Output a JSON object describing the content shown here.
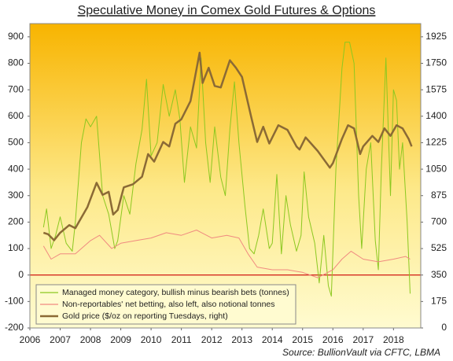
{
  "chart_data": {
    "type": "line",
    "title": "Speculative Money in Comex Gold Futures & Options",
    "source": "Source: BullionVault via CFTC, LBMA",
    "xlim": [
      2006,
      2018.9
    ],
    "xticks": [
      2006,
      2007,
      2008,
      2009,
      2010,
      2011,
      2012,
      2013,
      2014,
      2015,
      2016,
      2017,
      2018
    ],
    "ylim": [
      -200,
      950
    ],
    "yticks": [
      -200,
      -100,
      0,
      100,
      200,
      300,
      400,
      500,
      600,
      700,
      800,
      900
    ],
    "y2lim": [
      0,
      2012.5
    ],
    "y2ticks": [
      0,
      175,
      350,
      525,
      700,
      875,
      1050,
      1225,
      1400,
      1575,
      1750,
      1925
    ],
    "reference_line": 0,
    "reference_color": "#cc0000",
    "grid": false,
    "legend": "bottom-left",
    "series": [
      {
        "name": "Managed money category, bullish minus bearish bets (tonnes)",
        "color": "#8cc820",
        "x": [
          2006.45,
          2006.55,
          2006.7,
          2006.85,
          2007.0,
          2007.2,
          2007.4,
          2007.5,
          2007.7,
          2007.85,
          2008.0,
          2008.2,
          2008.4,
          2008.6,
          2008.8,
          2008.9,
          2009.1,
          2009.3,
          2009.5,
          2009.7,
          2009.85,
          2010.0,
          2010.2,
          2010.4,
          2010.6,
          2010.8,
          2010.95,
          2011.1,
          2011.3,
          2011.5,
          2011.65,
          2011.8,
          2011.95,
          2012.1,
          2012.3,
          2012.45,
          2012.6,
          2012.75,
          2012.9,
          2013.1,
          2013.25,
          2013.4,
          2013.55,
          2013.7,
          2013.9,
          2014.0,
          2014.15,
          2014.3,
          2014.45,
          2014.6,
          2014.8,
          2014.95,
          2015.05,
          2015.2,
          2015.4,
          2015.55,
          2015.7,
          2015.85,
          2015.95,
          2016.1,
          2016.3,
          2016.4,
          2016.55,
          2016.7,
          2016.85,
          2016.95,
          2017.1,
          2017.25,
          2017.4,
          2017.5,
          2017.6,
          2017.75,
          2017.9,
          2018.0,
          2018.1,
          2018.2,
          2018.3,
          2018.45,
          2018.55
        ],
        "values": [
          180,
          250,
          100,
          150,
          220,
          120,
          90,
          200,
          500,
          590,
          560,
          600,
          300,
          230,
          100,
          130,
          300,
          230,
          420,
          550,
          740,
          450,
          500,
          720,
          600,
          700,
          590,
          350,
          560,
          480,
          820,
          500,
          350,
          560,
          370,
          300,
          550,
          730,
          500,
          260,
          100,
          80,
          150,
          250,
          100,
          120,
          380,
          80,
          300,
          190,
          90,
          150,
          390,
          220,
          120,
          -30,
          150,
          -40,
          -80,
          400,
          780,
          880,
          880,
          800,
          300,
          100,
          400,
          500,
          130,
          20,
          400,
          820,
          300,
          700,
          660,
          400,
          500,
          200,
          -70
        ]
      },
      {
        "name": "Non-reportables' net betting, also left, also notional tonnes",
        "color": "#f08a80",
        "x": [
          2006.45,
          2006.7,
          2007.0,
          2007.5,
          2008.0,
          2008.3,
          2008.7,
          2009.0,
          2009.5,
          2010.0,
          2010.5,
          2011.0,
          2011.5,
          2012.0,
          2012.5,
          2012.9,
          2013.2,
          2013.5,
          2014.0,
          2014.5,
          2015.0,
          2015.5,
          2016.0,
          2016.3,
          2016.6,
          2017.0,
          2017.5,
          2018.0,
          2018.4,
          2018.55
        ],
        "values": [
          110,
          60,
          80,
          80,
          130,
          150,
          100,
          120,
          130,
          140,
          160,
          150,
          170,
          140,
          150,
          140,
          80,
          30,
          20,
          20,
          10,
          -10,
          20,
          60,
          90,
          60,
          50,
          60,
          70,
          60
        ]
      },
      {
        "name": "Gold price ($/oz on reporting Tuesdays, right)",
        "color": "#8b6a35",
        "axis": "y2",
        "x": [
          2006.45,
          2006.6,
          2006.8,
          2007.0,
          2007.3,
          2007.5,
          2007.7,
          2007.9,
          2008.2,
          2008.4,
          2008.6,
          2008.75,
          2008.9,
          2009.1,
          2009.4,
          2009.7,
          2009.9,
          2010.1,
          2010.4,
          2010.6,
          2010.8,
          2011.0,
          2011.3,
          2011.6,
          2011.7,
          2011.9,
          2012.1,
          2012.3,
          2012.6,
          2012.8,
          2013.0,
          2013.3,
          2013.5,
          2013.7,
          2013.9,
          2014.2,
          2014.5,
          2014.8,
          2014.9,
          2015.1,
          2015.5,
          2015.9,
          2016.0,
          2016.3,
          2016.5,
          2016.7,
          2016.9,
          2017.0,
          2017.3,
          2017.5,
          2017.7,
          2017.9,
          2018.1,
          2018.3,
          2018.5,
          2018.6
        ],
        "values": [
          630,
          620,
          580,
          630,
          680,
          660,
          730,
          800,
          960,
          880,
          900,
          750,
          780,
          930,
          950,
          1000,
          1150,
          1100,
          1230,
          1200,
          1350,
          1380,
          1500,
          1820,
          1620,
          1720,
          1600,
          1590,
          1770,
          1720,
          1660,
          1400,
          1230,
          1330,
          1220,
          1340,
          1310,
          1200,
          1180,
          1260,
          1170,
          1060,
          1090,
          1250,
          1340,
          1320,
          1150,
          1200,
          1270,
          1230,
          1320,
          1270,
          1340,
          1320,
          1250,
          1200
        ]
      }
    ]
  }
}
